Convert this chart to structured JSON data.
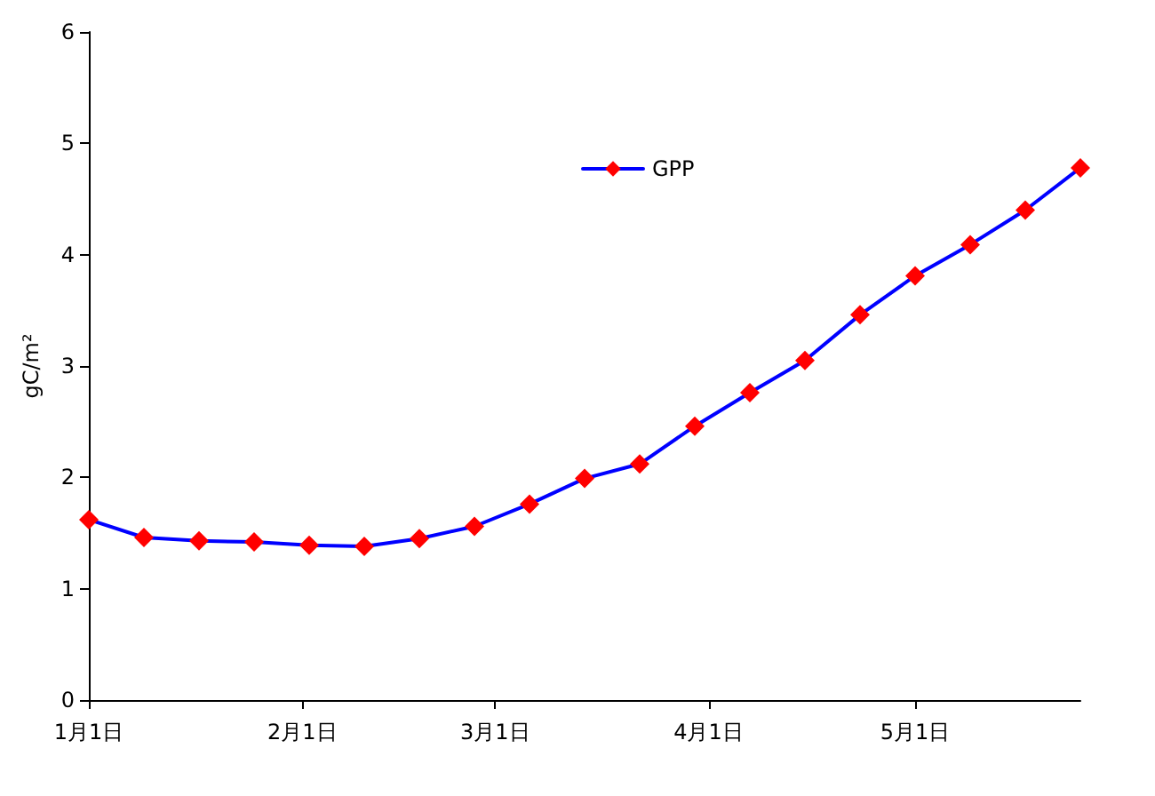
{
  "chart_data": {
    "type": "line",
    "ylabel": "gC/m²",
    "x": [
      "--01-01",
      "--01-09",
      "--01-17",
      "--01-25",
      "--02-02",
      "--02-10",
      "--02-18",
      "--02-26",
      "--03-06",
      "--03-14",
      "--03-22",
      "--03-30",
      "--04-07",
      "--04-15",
      "--04-23",
      "--05-01",
      "--05-09",
      "--05-17",
      "--05-25"
    ],
    "series": [
      {
        "name": "GPP",
        "color": "#0000ff",
        "colors": [
          "#ff0000",
          "#ff0000",
          "#ff0000",
          "#ff0000",
          "#ff0000",
          "#ff0000",
          "#ff0000",
          "#ff0000",
          "#ff0000",
          "#ff0000",
          "#ff0000",
          "#ff0000",
          "#ff0000",
          "#ff0000",
          "#ff0000",
          "#ff0000",
          "#ff0000",
          "#ff0000",
          "#ff0000"
        ],
        "values": [
          1.62,
          1.46,
          1.43,
          1.42,
          1.39,
          1.38,
          1.45,
          1.56,
          1.76,
          1.99,
          2.12,
          2.46,
          2.76,
          3.05,
          3.46,
          3.81,
          4.09,
          4.4,
          4.78
        ]
      }
    ],
    "xlim": [
      "--01-01",
      "--05-25"
    ],
    "xticks": [
      {
        "value": "--01-01",
        "label": "1月1日"
      },
      {
        "value": "--02-01",
        "label": "2月1日"
      },
      {
        "value": "--03-01",
        "label": "3月1日"
      },
      {
        "value": "--04-01",
        "label": "4月1日"
      },
      {
        "value": "--05-01",
        "label": "5月1日"
      }
    ],
    "ylim": [
      0,
      6
    ],
    "yticks": [
      0,
      1,
      2,
      3,
      4,
      5,
      6
    ],
    "marker": "diamond",
    "line_style": "solid",
    "legend": "top",
    "grid": false
  }
}
